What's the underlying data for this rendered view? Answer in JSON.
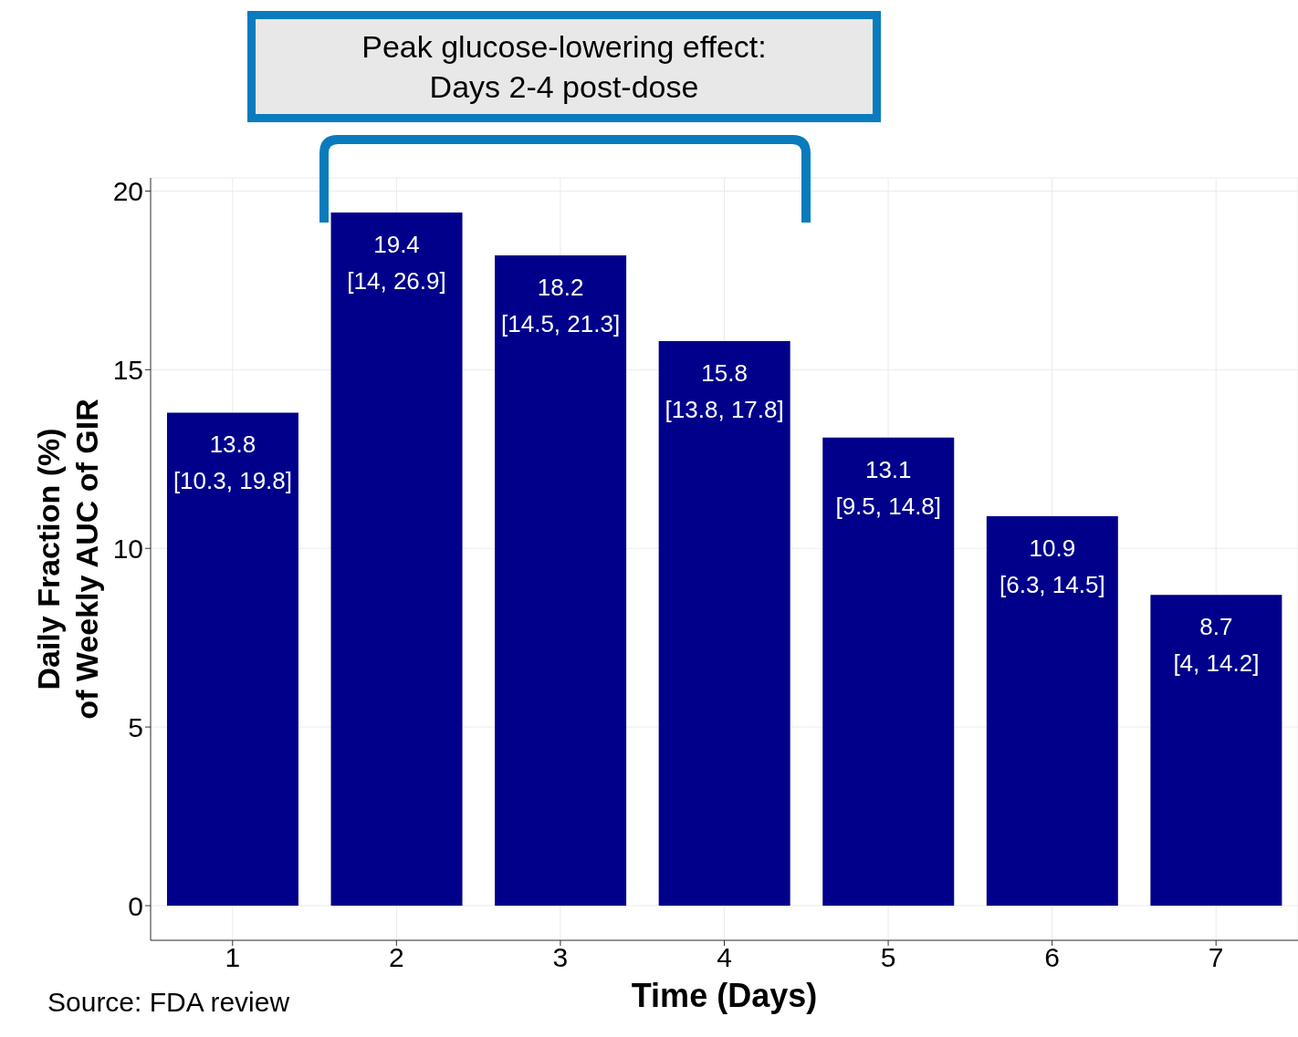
{
  "chart_data": {
    "type": "bar",
    "xlabel": "Time (Days)",
    "ylabel": "Daily Fraction (%)\nof Weekly AUC of GIR",
    "categories": [
      "1",
      "2",
      "3",
      "4",
      "5",
      "6",
      "7"
    ],
    "values": [
      13.8,
      19.4,
      18.2,
      15.8,
      13.1,
      10.9,
      8.7
    ],
    "value_labels": [
      "13.8\n[10.3, 19.8]",
      "19.4\n[14, 26.9]",
      "18.2\n[14.5, 21.3]",
      "15.8\n[13.8, 17.8]",
      "13.1\n[9.5, 14.8]",
      "10.9\n[6.3, 14.5]",
      "8.7\n[4, 14.2]"
    ],
    "color": "#00008b",
    "ylim": [
      -0.97,
      20.37
    ],
    "yticks": [
      0,
      5,
      10,
      15,
      20
    ],
    "grid": true,
    "annotations": [
      "Peak glucose-lowering effect:\nDays 2-4 post-dose",
      "Source: FDA review"
    ]
  }
}
